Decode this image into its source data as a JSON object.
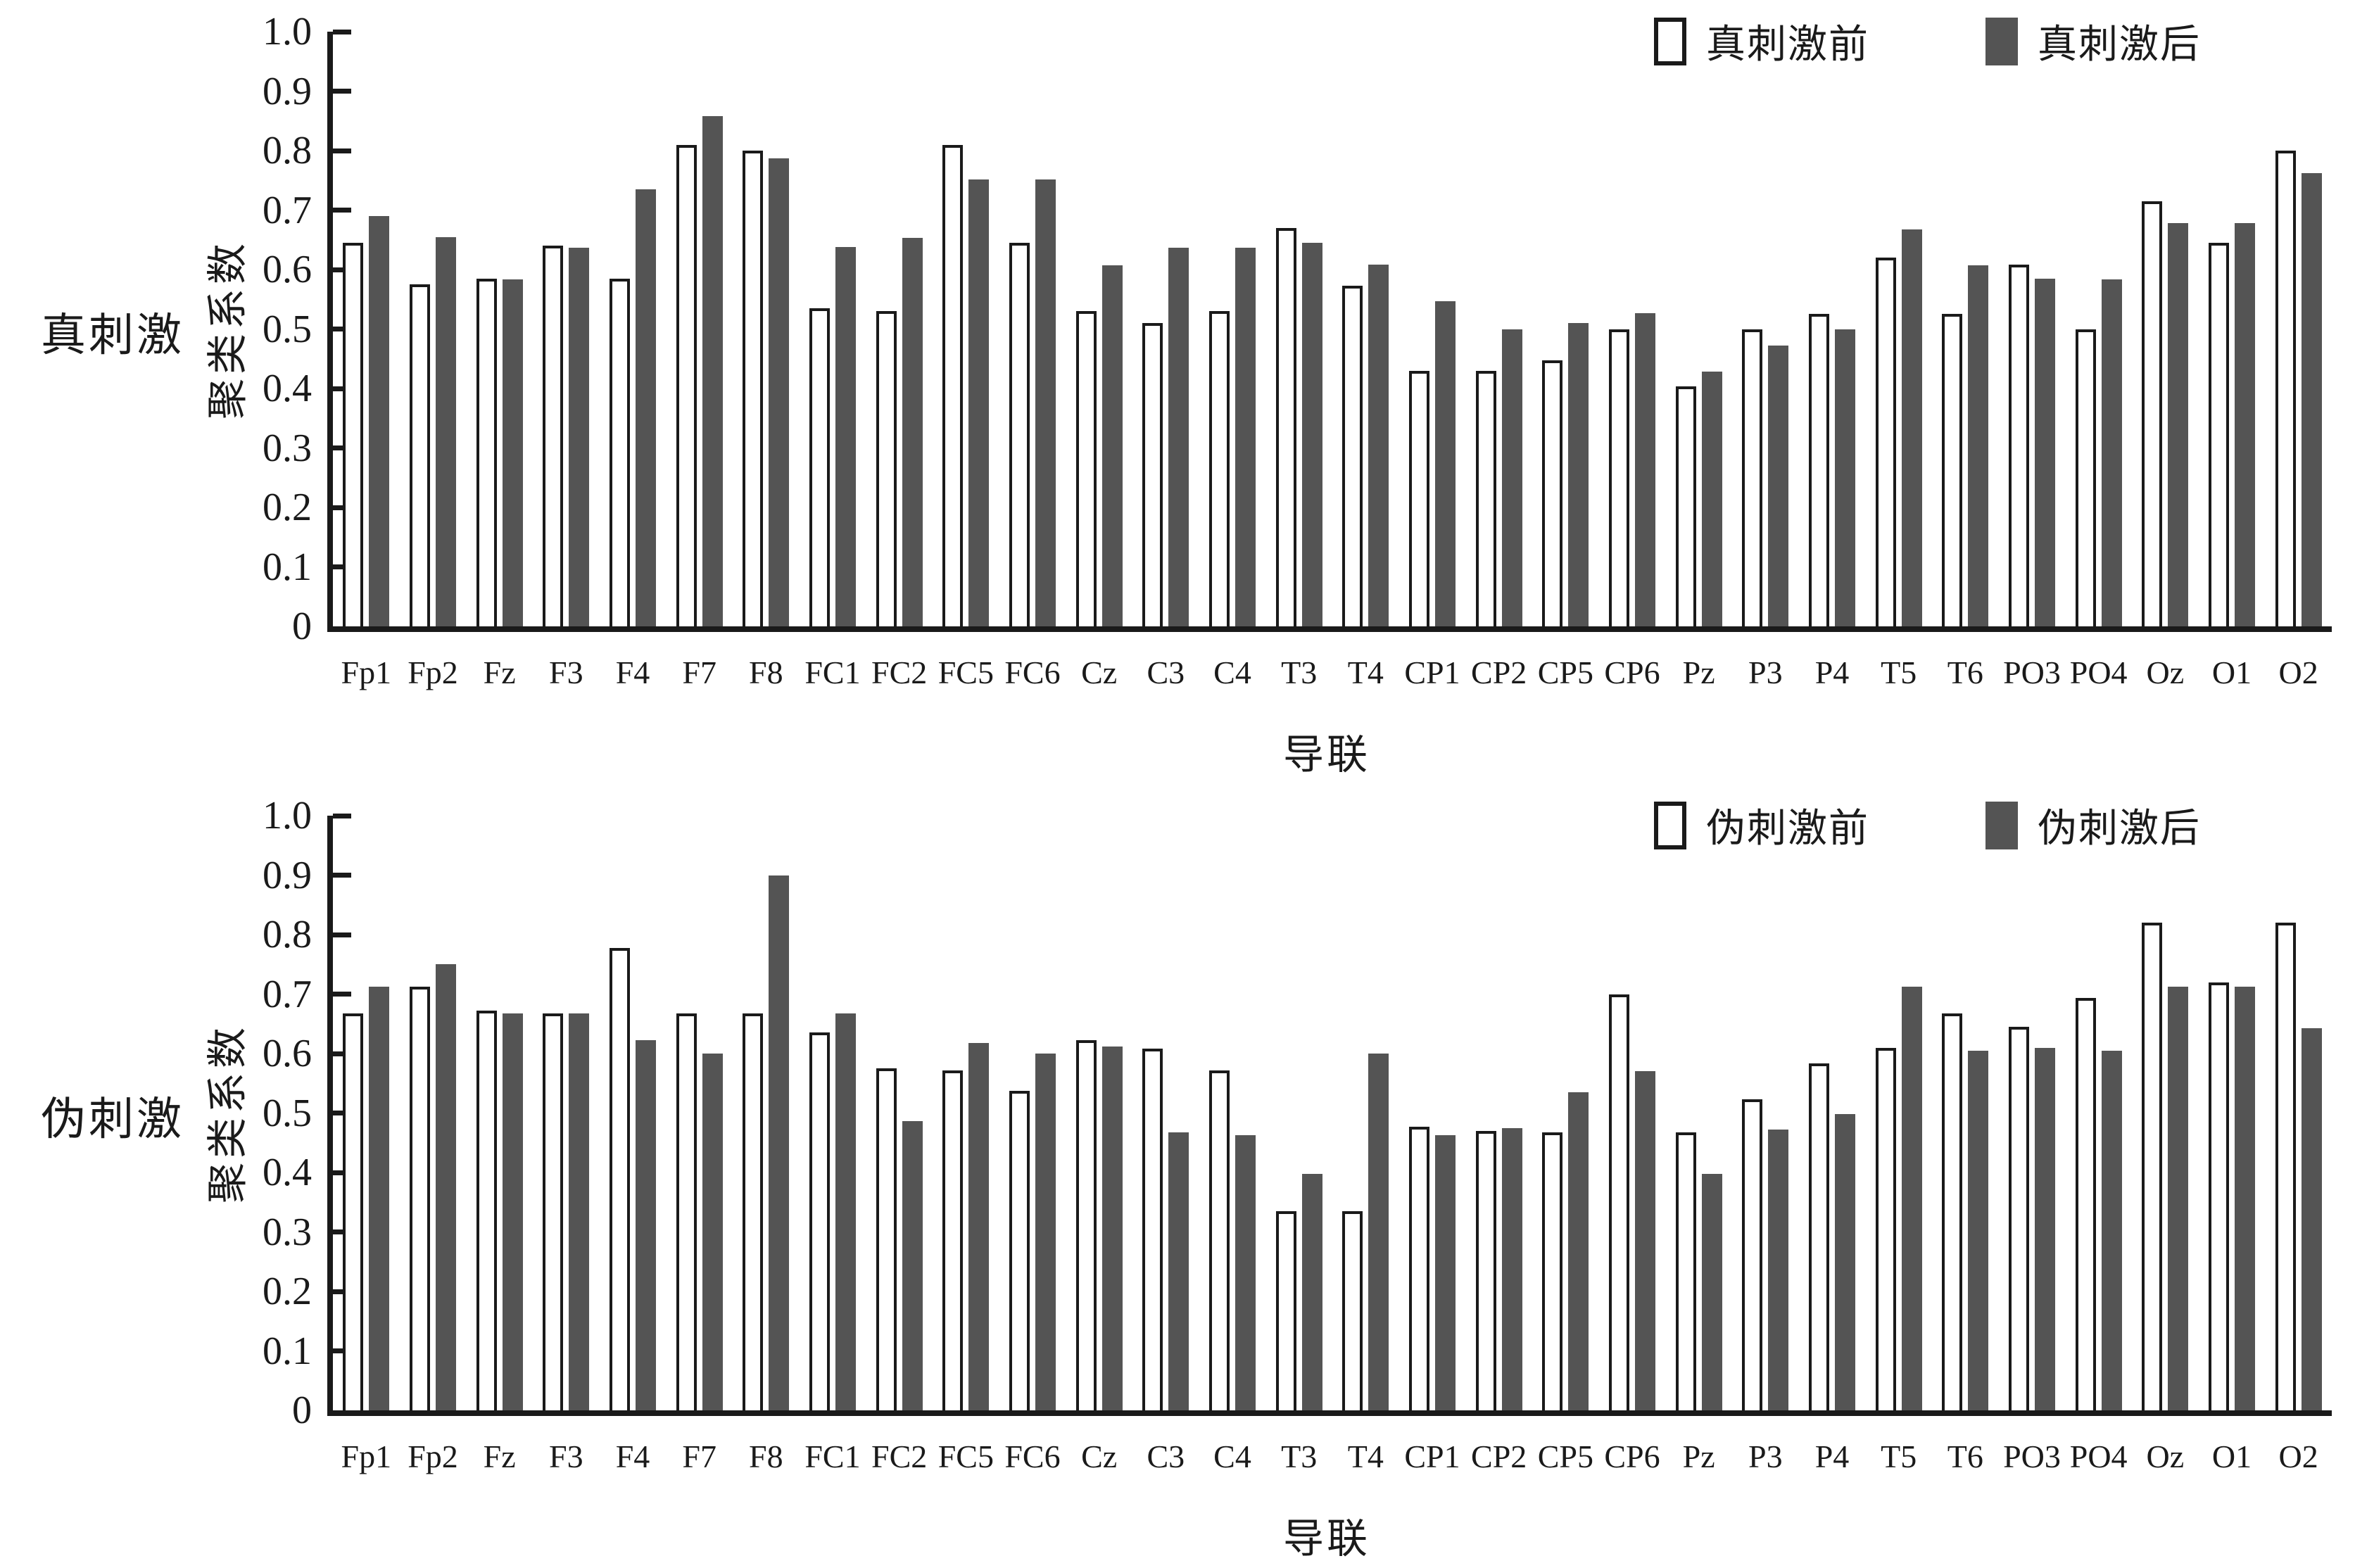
{
  "figure": {
    "y_axis_label": "聚类系数",
    "x_axis_label": "导联",
    "y_ticks": [
      "1.0",
      "0.9",
      "0.8",
      "0.7",
      "0.6",
      "0.5",
      "0.4",
      "0.3",
      "0.2",
      "0.1",
      "0"
    ],
    "colors": {
      "pre_fill": "#ffffff",
      "pre_border": "#1a1a1a",
      "post_fill": "#545454",
      "axis": "#1a1a1a"
    }
  },
  "chart_data": [
    {
      "type": "bar",
      "panel_label": "真刺激",
      "legend": [
        "真刺激前",
        "真刺激后"
      ],
      "xlabel": "导联",
      "ylabel": "聚类系数",
      "ylim": [
        0,
        1.0
      ],
      "grid": false,
      "legend_position": "top-right",
      "categories": [
        "Fp1",
        "Fp2",
        "Fz",
        "F3",
        "F4",
        "F7",
        "F8",
        "FC1",
        "FC2",
        "FC5",
        "FC6",
        "Cz",
        "C3",
        "C4",
        "T3",
        "T4",
        "CP1",
        "CP2",
        "CP5",
        "CP6",
        "Pz",
        "P3",
        "P4",
        "T5",
        "T6",
        "PO3",
        "PO4",
        "Oz",
        "O1",
        "O2"
      ],
      "series": [
        {
          "name": "真刺激前",
          "values": [
            0.645,
            0.575,
            0.585,
            0.64,
            0.585,
            0.81,
            0.8,
            0.535,
            0.53,
            0.81,
            0.645,
            0.53,
            0.51,
            0.53,
            0.67,
            0.573,
            0.43,
            0.43,
            0.447,
            0.5,
            0.403,
            0.5,
            0.525,
            0.62,
            0.525,
            0.608,
            0.5,
            0.715,
            0.645,
            0.8
          ]
        },
        {
          "name": "真刺激后",
          "values": [
            0.69,
            0.655,
            0.583,
            0.637,
            0.735,
            0.858,
            0.787,
            0.638,
            0.653,
            0.752,
            0.752,
            0.607,
            0.637,
            0.637,
            0.645,
            0.608,
            0.547,
            0.5,
            0.51,
            0.527,
            0.428,
            0.472,
            0.5,
            0.668,
            0.607,
            0.585,
            0.583,
            0.678,
            0.678,
            0.762
          ]
        }
      ]
    },
    {
      "type": "bar",
      "panel_label": "伪刺激",
      "legend": [
        "伪刺激前",
        "伪刺激后"
      ],
      "xlabel": "导联",
      "ylabel": "聚类系数",
      "ylim": [
        0,
        1.0
      ],
      "grid": false,
      "legend_position": "top-right",
      "categories": [
        "Fp1",
        "Fp2",
        "Fz",
        "F3",
        "F4",
        "F7",
        "F8",
        "FC1",
        "FC2",
        "FC5",
        "FC6",
        "Cz",
        "C3",
        "C4",
        "T3",
        "T4",
        "CP1",
        "CP2",
        "CP5",
        "CP6",
        "Pz",
        "P3",
        "P4",
        "T5",
        "T6",
        "PO3",
        "PO4",
        "Oz",
        "O1",
        "O2"
      ],
      "series": [
        {
          "name": "伪刺激前",
          "values": [
            0.668,
            0.713,
            0.672,
            0.667,
            0.778,
            0.667,
            0.667,
            0.635,
            0.575,
            0.572,
            0.537,
            0.622,
            0.608,
            0.572,
            0.335,
            0.335,
            0.477,
            0.47,
            0.468,
            0.7,
            0.468,
            0.523,
            0.583,
            0.61,
            0.667,
            0.645,
            0.693,
            0.82,
            0.72,
            0.82
          ]
        },
        {
          "name": "伪刺激后",
          "values": [
            0.712,
            0.75,
            0.667,
            0.667,
            0.622,
            0.6,
            0.9,
            0.667,
            0.487,
            0.618,
            0.6,
            0.612,
            0.467,
            0.463,
            0.398,
            0.6,
            0.463,
            0.475,
            0.535,
            0.57,
            0.398,
            0.472,
            0.498,
            0.712,
            0.605,
            0.61,
            0.605,
            0.712,
            0.713,
            0.643
          ]
        }
      ]
    }
  ]
}
